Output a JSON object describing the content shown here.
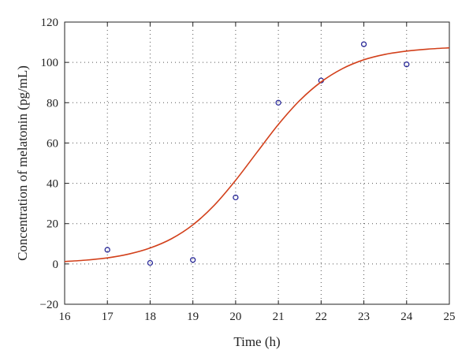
{
  "chart_data": {
    "type": "scatter",
    "title": "",
    "xlabel": "Time (h)",
    "ylabel": "Concentration of melatonin (pg/mL)",
    "xlim": [
      16,
      25
    ],
    "ylim": [
      -20,
      120
    ],
    "x_ticks": [
      16,
      17,
      18,
      19,
      20,
      21,
      22,
      23,
      24,
      25
    ],
    "y_ticks": [
      -20,
      0,
      20,
      40,
      60,
      80,
      100,
      120
    ],
    "x_tick_labels": [
      "16",
      "17",
      "18",
      "19",
      "20",
      "21",
      "22",
      "23",
      "24",
      "25"
    ],
    "y_tick_labels": [
      "−20",
      "0",
      "20",
      "40",
      "60",
      "80",
      "100",
      "120"
    ],
    "grid": true,
    "series": [
      {
        "type": "scatter",
        "marker": "open-circle",
        "color": "#2b2b9a",
        "x": [
          17,
          18,
          19,
          20,
          21,
          22,
          23,
          24
        ],
        "y": [
          7,
          0.5,
          2,
          33,
          80,
          91,
          109,
          99
        ]
      },
      {
        "type": "line",
        "color": "#d2401b",
        "x": [
          16,
          16.5,
          17,
          17.5,
          18,
          18.5,
          19,
          19.5,
          20,
          20.5,
          21,
          21.5,
          22,
          22.5,
          23,
          23.5,
          24,
          24.5,
          25
        ],
        "y": [
          1.2,
          1.9,
          3.0,
          4.9,
          7.9,
          12.5,
          19.4,
          29.1,
          41.5,
          55.4,
          69.2,
          81.1,
          90.3,
          96.9,
          101.3,
          104.0,
          105.6,
          106.6,
          107.2
        ]
      }
    ]
  }
}
